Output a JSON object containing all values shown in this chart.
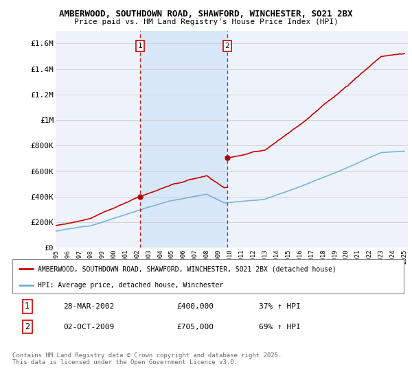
{
  "title_line1": "AMBERWOOD, SOUTHDOWN ROAD, SHAWFORD, WINCHESTER, SO21 2BX",
  "title_line2": "Price paid vs. HM Land Registry's House Price Index (HPI)",
  "ylabel_ticks": [
    "£0",
    "£200K",
    "£400K",
    "£600K",
    "£800K",
    "£1M",
    "£1.2M",
    "£1.4M",
    "£1.6M"
  ],
  "ytick_values": [
    0,
    200000,
    400000,
    600000,
    800000,
    1000000,
    1200000,
    1400000,
    1600000
  ],
  "ylim": [
    0,
    1700000
  ],
  "x_start_year": 1995,
  "x_end_year": 2025,
  "legend_line1": "AMBERWOOD, SOUTHDOWN ROAD, SHAWFORD, WINCHESTER, SO21 2BX (detached house)",
  "legend_line2": "HPI: Average price, detached house, Winchester",
  "sale1_date": "28-MAR-2002",
  "sale1_price": "£400,000",
  "sale1_price_val": 400000,
  "sale1_hpi": "37% ↑ HPI",
  "sale1_year": 2002.25,
  "sale2_date": "02-OCT-2009",
  "sale2_price": "£705,000",
  "sale2_price_val": 705000,
  "sale2_hpi": "69% ↑ HPI",
  "sale2_year": 2009.75,
  "footer": "Contains HM Land Registry data © Crown copyright and database right 2025.\nThis data is licensed under the Open Government Licence v3.0.",
  "red_color": "#cc0000",
  "blue_color": "#6baed6",
  "dashed_color": "#cc0000",
  "bg_color": "#eef3fb",
  "shade_color": "#d0e4f7",
  "plot_bg": "#ffffff",
  "grid_color": "#cccccc"
}
